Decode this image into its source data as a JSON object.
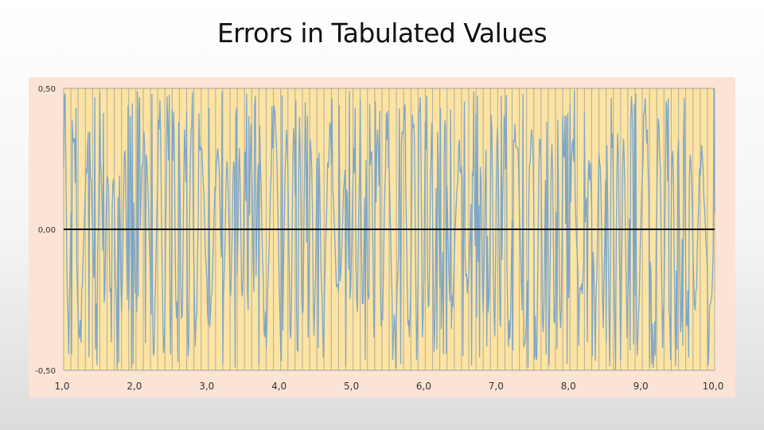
{
  "slide": {
    "title": "Errors in Tabulated Values"
  },
  "chart_data": {
    "type": "line",
    "title": "",
    "xlabel": "",
    "ylabel": "",
    "xlim": [
      1.0,
      10.0
    ],
    "ylim": [
      -0.5,
      0.5
    ],
    "y_ticks": [
      "0,50",
      "0,00",
      "-0,50"
    ],
    "y_tick_values": [
      0.5,
      0.0,
      -0.5
    ],
    "x_ticks": [
      "1,0",
      "2,0",
      "3,0",
      "4,0",
      "5,0",
      "6,0",
      "7,0",
      "8,0",
      "9,0",
      "10,0"
    ],
    "x_tick_values": [
      1,
      2,
      3,
      4,
      5,
      6,
      7,
      8,
      9,
      10
    ],
    "grid": true,
    "legend": "none",
    "colors": {
      "plot_bg": "#fde4a3",
      "frame_bg": "#fbe3d5",
      "series": "#7ea6c8",
      "gridline": "#a0a0a0",
      "zero_line": "#000000"
    },
    "series": [
      {
        "description": "rapidly oscillating tabulation error between -0.5 and 0.5",
        "x_range": [
          1.0,
          10.0
        ],
        "y_range": [
          -0.5,
          0.5
        ],
        "samples": 900
      }
    ]
  }
}
